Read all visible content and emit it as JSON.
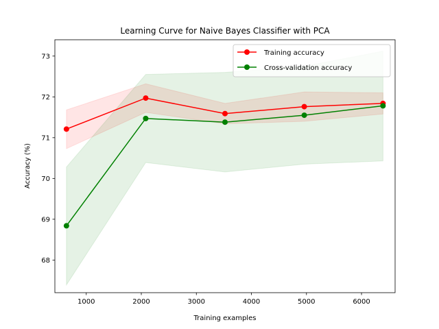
{
  "chart_data": {
    "type": "line",
    "title": "Learning Curve for Naive Bayes Classifier with PCA",
    "xlabel": "Training examples",
    "ylabel": "Accuracy (%)",
    "xlim": [
      430,
      6610
    ],
    "ylim": [
      67.2,
      73.4
    ],
    "xticks": [
      1000,
      2000,
      3000,
      4000,
      5000,
      6000
    ],
    "yticks": [
      68,
      69,
      70,
      71,
      72,
      73
    ],
    "x": [
      640,
      2080,
      3520,
      4960,
      6390
    ],
    "legend_position": "upper-right",
    "grid": false,
    "series": [
      {
        "name": "Training accuracy",
        "color": "#ff0000",
        "values": [
          71.21,
          71.97,
          71.59,
          71.76,
          71.84
        ],
        "band_lower": [
          70.73,
          71.62,
          71.34,
          71.4,
          71.58
        ],
        "band_upper": [
          71.68,
          72.32,
          71.84,
          72.12,
          72.1
        ]
      },
      {
        "name": "Cross-validation accuracy",
        "color": "#008000",
        "values": [
          68.84,
          71.47,
          71.38,
          71.55,
          71.78
        ],
        "band_lower": [
          67.39,
          70.39,
          70.16,
          70.35,
          70.43
        ],
        "band_upper": [
          70.28,
          72.55,
          72.6,
          72.75,
          73.12
        ]
      }
    ]
  }
}
